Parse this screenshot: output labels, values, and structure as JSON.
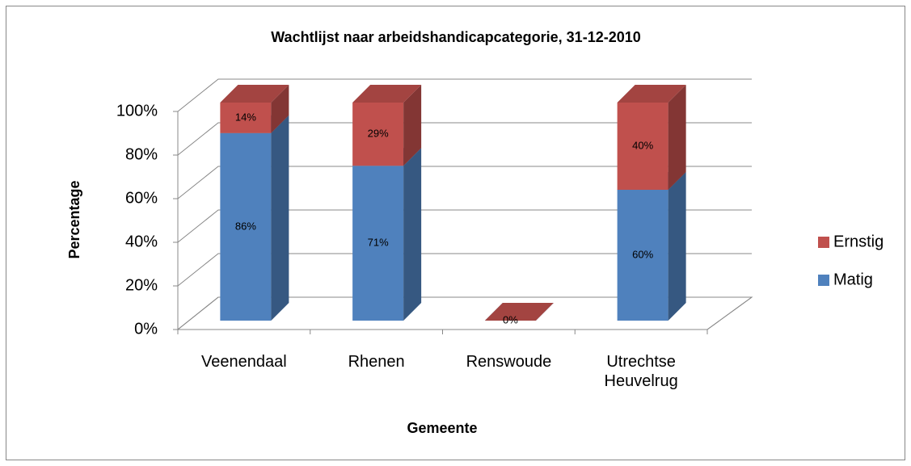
{
  "chart_data": {
    "type": "bar3d_stacked",
    "title": "Wachtlijst naar arbeidshandicapcategorie, 31-12-2010",
    "x_label": "Gemeente",
    "y_label": "Percentage",
    "categories": [
      "Veenendaal",
      "Rhenen",
      "Renswoude",
      "Utrechtse Heuvelrug"
    ],
    "series": [
      {
        "name": "Matig",
        "color": "#4f81bd",
        "values": [
          86,
          71,
          0,
          60
        ],
        "value_labels": [
          "86%",
          "71%",
          null,
          "60%"
        ]
      },
      {
        "name": "Ernstig",
        "color": "#c0504d",
        "values": [
          14,
          29,
          0,
          40
        ],
        "value_labels": [
          "14%",
          "29%",
          "0%",
          "40%"
        ]
      }
    ],
    "ylim": [
      0,
      100
    ],
    "yticks": [
      {
        "value": 0,
        "label": "0%"
      },
      {
        "value": 20,
        "label": "20%"
      },
      {
        "value": 40,
        "label": "40%"
      },
      {
        "value": 60,
        "label": "60%"
      },
      {
        "value": 80,
        "label": "80%"
      },
      {
        "value": 100,
        "label": "100%"
      }
    ],
    "grid": true,
    "legend": "right"
  }
}
